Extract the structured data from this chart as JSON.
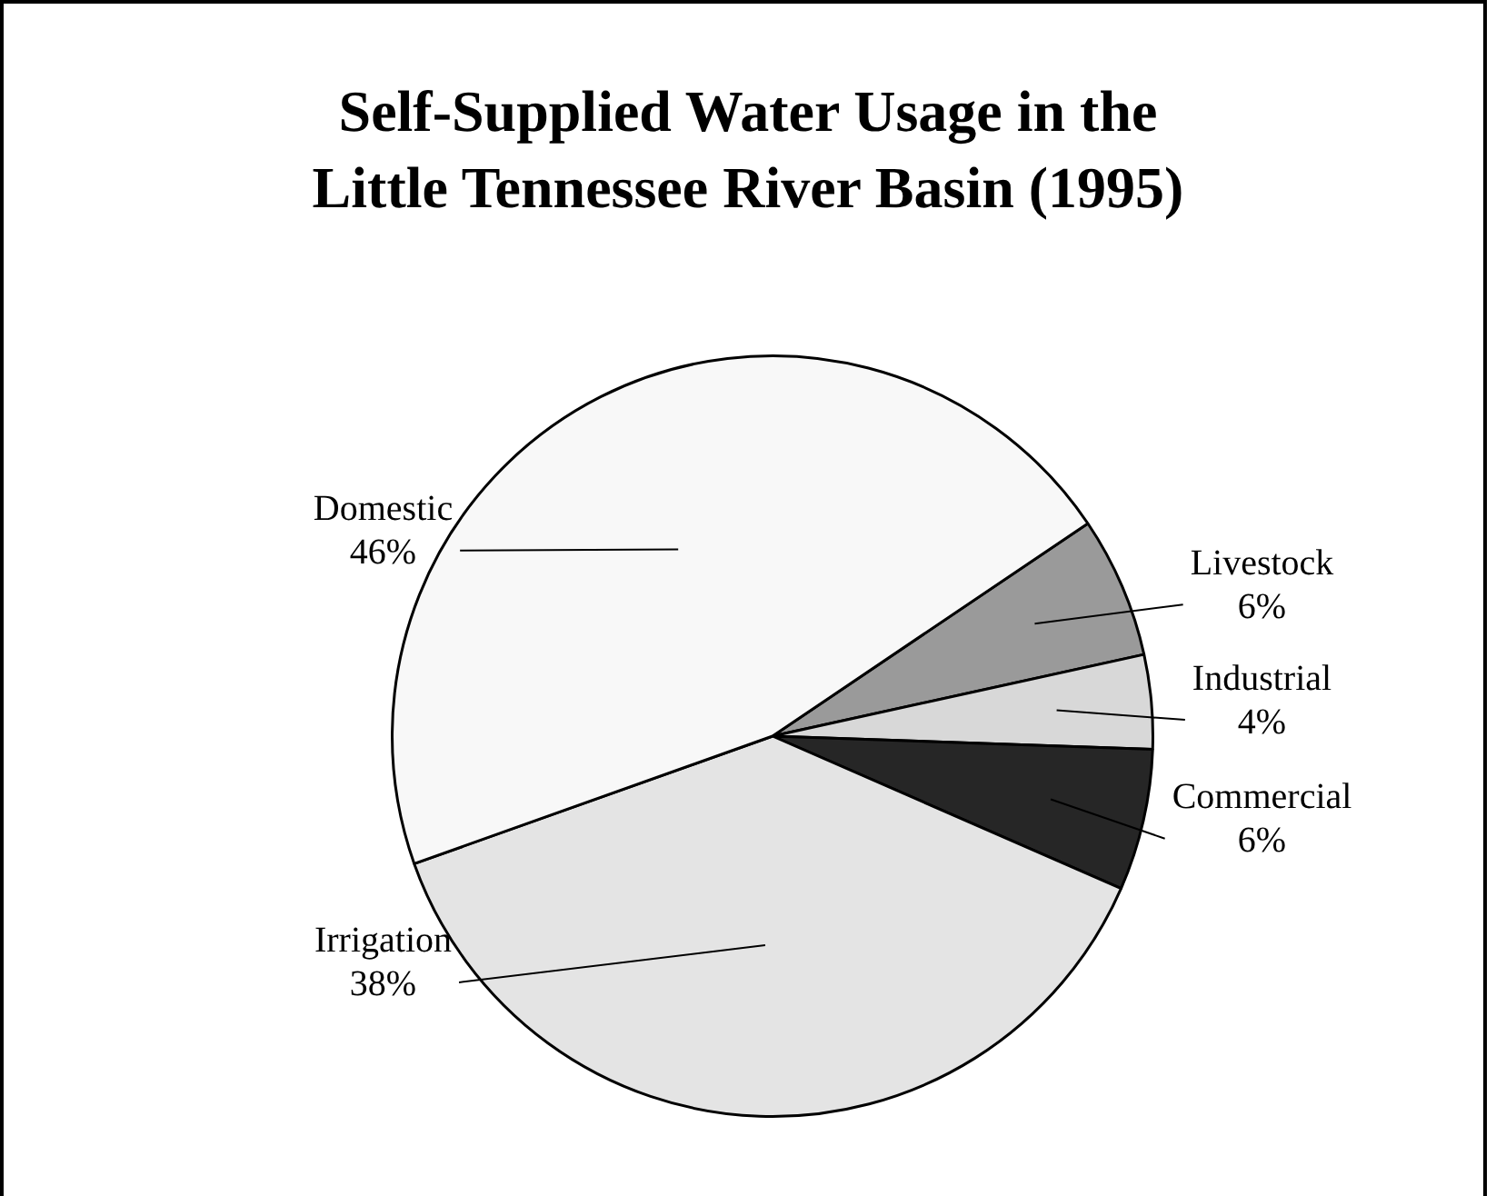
{
  "chart_data": {
    "type": "pie",
    "title": "Self-Supplied Water Usage in the\nLittle Tennessee River Basin (1995)",
    "categories": [
      "Livestock",
      "Industrial",
      "Commercial",
      "Irrigation",
      "Domestic"
    ],
    "values": [
      6,
      4,
      6,
      38,
      46
    ],
    "colors": [
      "#9a9a9a",
      "#d8d8d8",
      "#262626",
      "#e4e4e4",
      "#f8f8f8"
    ],
    "value_labels": [
      "6%",
      "4%",
      "6%",
      "38%",
      "46%"
    ],
    "legend": false
  }
}
